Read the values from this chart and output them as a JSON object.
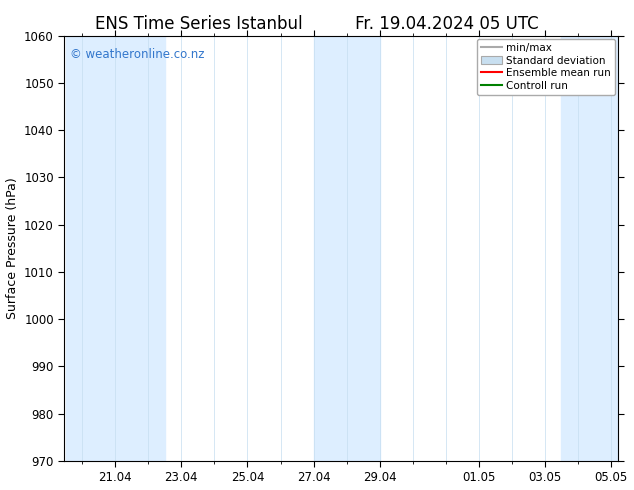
{
  "title": "ENS Time Series Istanbul",
  "title2": "Fr. 19.04.2024 05 UTC",
  "ylabel": "Surface Pressure (hPa)",
  "ylim": [
    970,
    1060
  ],
  "yticks": [
    970,
    980,
    990,
    1000,
    1010,
    1020,
    1030,
    1040,
    1050,
    1060
  ],
  "background_color": "#ffffff",
  "plot_bg_color": "#ffffff",
  "watermark": "© weatheronline.co.nz",
  "watermark_color": "#3377cc",
  "shaded_bands": [
    {
      "xstart": 19.5,
      "xend": 22.5,
      "color": "#ddeeff"
    },
    {
      "xstart": 27.0,
      "xend": 29.0,
      "color": "#ddeeff"
    },
    {
      "xstart": 34.5,
      "xend": 36.21,
      "color": "#ddeeff"
    }
  ],
  "xtick_labels": [
    "21.04",
    "23.04",
    "25.04",
    "27.04",
    "29.04",
    "01.05",
    "03.05",
    "05.05"
  ],
  "xtick_positions": [
    21.0,
    23.0,
    25.0,
    27.0,
    29.0,
    32.0,
    34.0,
    36.0
  ],
  "minor_xtick_positions": [
    20.0,
    21.0,
    22.0,
    23.0,
    24.0,
    25.0,
    26.0,
    27.0,
    28.0,
    29.0,
    30.0,
    31.0,
    32.0,
    33.0,
    34.0,
    35.0,
    36.0
  ],
  "xmin": 19.458333,
  "xmax": 36.208333,
  "legend_items": [
    {
      "label": "min/max",
      "color": "#aaaaaa",
      "type": "errorbar"
    },
    {
      "label": "Standard deviation",
      "color": "#c8dff0",
      "type": "bar"
    },
    {
      "label": "Ensemble mean run",
      "color": "#ff0000",
      "type": "line"
    },
    {
      "label": "Controll run",
      "color": "#008000",
      "type": "line"
    }
  ],
  "mean_line_color": "#ff0000",
  "control_line_color": "#008000",
  "minmax_color": "#aaaaaa",
  "stddev_color": "#c8dff0",
  "title_fontsize": 12,
  "axis_label_fontsize": 9,
  "tick_fontsize": 8.5,
  "legend_fontsize": 7.5
}
